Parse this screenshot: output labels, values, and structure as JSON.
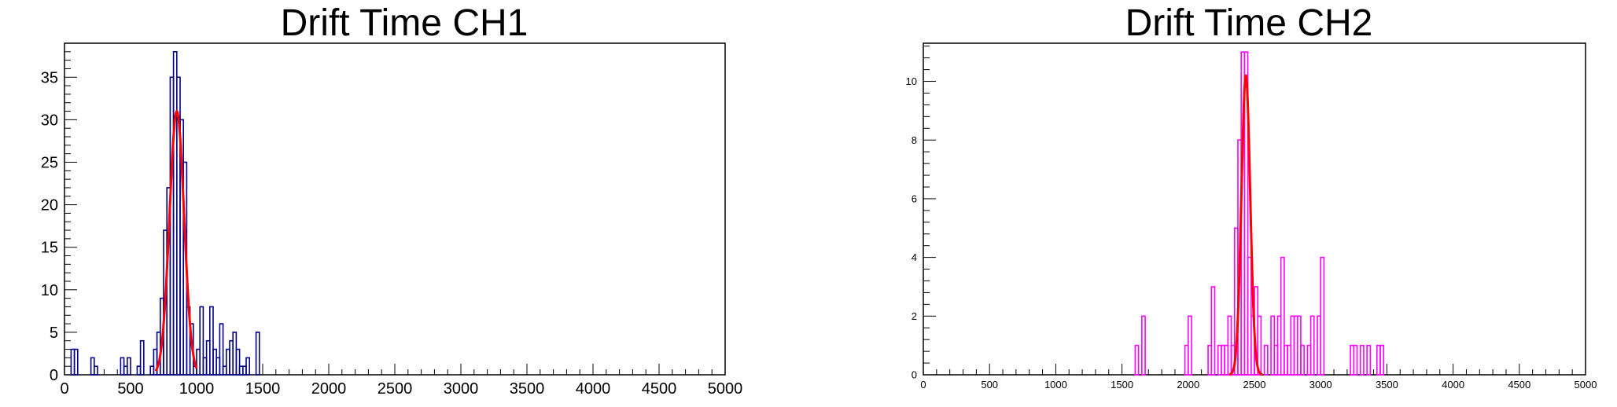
{
  "chart_data": [
    {
      "type": "bar",
      "title": "Drift Time CH1",
      "xlabel": "",
      "ylabel": "",
      "xlim": [
        0,
        5000
      ],
      "ylim": [
        0,
        39
      ],
      "x_ticks": [
        0,
        500,
        1000,
        1500,
        2000,
        2500,
        3000,
        3500,
        4000,
        4500,
        5000
      ],
      "y_ticks": [
        0,
        5,
        10,
        15,
        20,
        25,
        30,
        35
      ],
      "bin_width": 25,
      "series": [
        {
          "color": "#00008b",
          "values": [
            [
              50,
              3
            ],
            [
              75,
              3
            ],
            [
              200,
              2
            ],
            [
              225,
              1
            ],
            [
              425,
              2
            ],
            [
              450,
              1
            ],
            [
              475,
              2
            ],
            [
              550,
              1
            ],
            [
              575,
              4
            ],
            [
              650,
              1
            ],
            [
              675,
              3
            ],
            [
              700,
              5
            ],
            [
              725,
              9
            ],
            [
              750,
              17
            ],
            [
              775,
              22
            ],
            [
              800,
              35
            ],
            [
              825,
              38
            ],
            [
              850,
              35
            ],
            [
              875,
              30
            ],
            [
              900,
              25
            ],
            [
              925,
              8
            ],
            [
              950,
              6
            ],
            [
              975,
              1
            ],
            [
              1000,
              3
            ],
            [
              1025,
              8
            ],
            [
              1050,
              2
            ],
            [
              1075,
              4
            ],
            [
              1100,
              8
            ],
            [
              1125,
              3
            ],
            [
              1150,
              2
            ],
            [
              1175,
              6
            ],
            [
              1200,
              1
            ],
            [
              1225,
              3
            ],
            [
              1250,
              4
            ],
            [
              1275,
              5
            ],
            [
              1300,
              3
            ],
            [
              1325,
              1
            ],
            [
              1350,
              1
            ],
            [
              1375,
              2
            ],
            [
              1400,
              0
            ],
            [
              1425,
              0
            ],
            [
              1450,
              5
            ]
          ]
        }
      ],
      "fit": {
        "type": "gaus",
        "color": "#ff0000",
        "amplitude": 31,
        "mean": 850,
        "sigma": 55,
        "range": [
          690,
          1000
        ]
      }
    },
    {
      "type": "bar",
      "title": "Drift Time CH2",
      "xlabel": "",
      "ylabel": "",
      "xlim": [
        0,
        5000
      ],
      "ylim": [
        0,
        11.3
      ],
      "x_ticks": [
        0,
        500,
        1000,
        1500,
        2000,
        2500,
        3000,
        3500,
        4000,
        4500,
        5000
      ],
      "y_ticks": [
        0,
        2,
        4,
        6,
        8,
        10
      ],
      "bin_width": 25,
      "series": [
        {
          "color": "#ff00ff",
          "values": [
            [
              1600,
              1
            ],
            [
              1650,
              2
            ],
            [
              1975,
              1
            ],
            [
              2000,
              2
            ],
            [
              2150,
              1
            ],
            [
              2175,
              3
            ],
            [
              2225,
              1
            ],
            [
              2250,
              1
            ],
            [
              2275,
              1
            ],
            [
              2300,
              2
            ],
            [
              2325,
              1
            ],
            [
              2350,
              5
            ],
            [
              2375,
              8
            ],
            [
              2400,
              11
            ],
            [
              2425,
              11
            ],
            [
              2450,
              4
            ],
            [
              2475,
              2
            ],
            [
              2500,
              3
            ],
            [
              2525,
              2
            ],
            [
              2575,
              1
            ],
            [
              2625,
              2
            ],
            [
              2650,
              1
            ],
            [
              2675,
              2
            ],
            [
              2700,
              4
            ],
            [
              2725,
              1
            ],
            [
              2750,
              1
            ],
            [
              2775,
              2
            ],
            [
              2800,
              2
            ],
            [
              2825,
              2
            ],
            [
              2850,
              1
            ],
            [
              2875,
              0
            ],
            [
              2900,
              1
            ],
            [
              2925,
              2
            ],
            [
              2950,
              0
            ],
            [
              2975,
              2
            ],
            [
              3000,
              4
            ],
            [
              3225,
              1
            ],
            [
              3250,
              1
            ],
            [
              3300,
              1
            ],
            [
              3350,
              1
            ],
            [
              3425,
              1
            ],
            [
              3450,
              1
            ]
          ]
        }
      ],
      "fit": {
        "type": "gaus",
        "color": "#ff0000",
        "amplitude": 10.2,
        "mean": 2435,
        "sigma": 33,
        "range": [
          2310,
          2560
        ]
      }
    }
  ]
}
